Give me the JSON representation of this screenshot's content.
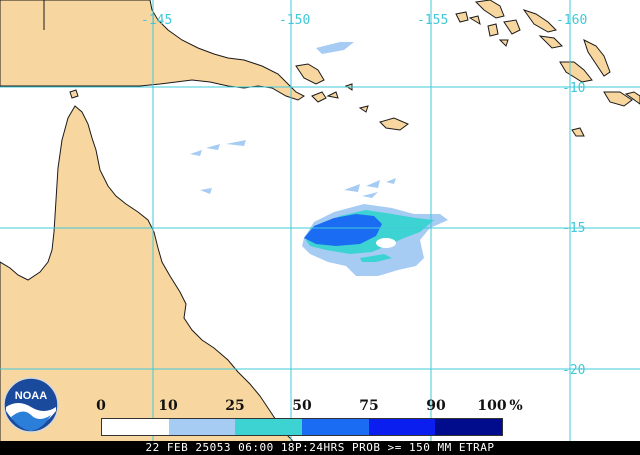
{
  "map": {
    "longitude_labels": [
      "-145",
      "-150",
      "-155",
      "-160"
    ],
    "latitude_labels": [
      "-10",
      "-15",
      "-20"
    ],
    "colors": {
      "land": "#f8d6a0",
      "ocean": "#ffffff",
      "graticule": "#40c8d8",
      "coast": "#1a1a1a"
    }
  },
  "legend": {
    "ticks": [
      "0",
      "10",
      "25",
      "50",
      "75",
      "90",
      "100"
    ],
    "unit": "%",
    "colors": [
      "#ffffff",
      "#a6ccf4",
      "#3dd3d3",
      "#1a6cf2",
      "#0a1ef0",
      "#000c8c"
    ]
  },
  "caption": "22 FEB 25053 06:00 18P:24HRS PROB >= 150 MM ETRAP",
  "logo": {
    "text": "NOAA",
    "icon": "noaa-logo-icon"
  }
}
